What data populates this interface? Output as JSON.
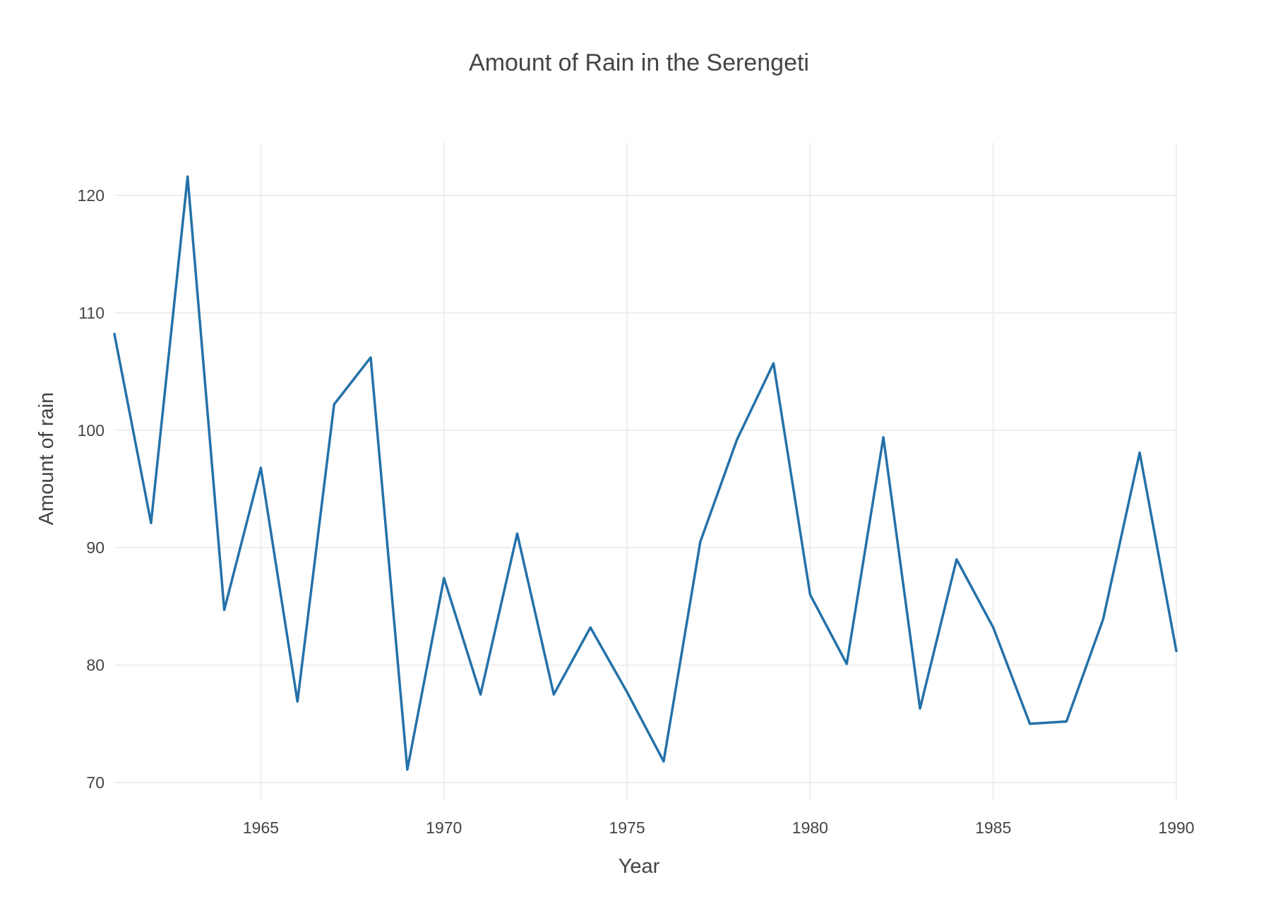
{
  "chart_data": {
    "type": "line",
    "title": "Amount of Rain in the Serengeti",
    "xlabel": "Year",
    "ylabel": "Amount of rain",
    "xlim": [
      1961,
      1990
    ],
    "ylim": [
      68.5,
      124.5
    ],
    "xticks": [
      1965,
      1970,
      1975,
      1980,
      1985,
      1990
    ],
    "yticks": [
      70,
      80,
      90,
      100,
      110,
      120
    ],
    "grid": true,
    "legend": "none",
    "line_color": "#2471a9",
    "series": [
      {
        "x": [
          1961,
          1962,
          1963,
          1964,
          1965,
          1966,
          1967,
          1968,
          1969,
          1970,
          1971,
          1972,
          1973,
          1974,
          1975,
          1976,
          1977,
          1978,
          1979,
          1980,
          1981,
          1982,
          1983,
          1984,
          1985,
          1986,
          1987,
          1988,
          1989,
          1990
        ],
        "values": [
          108.2,
          92.1,
          121.6,
          84.7,
          96.8,
          76.9,
          102.2,
          106.2,
          71.1,
          87.4,
          77.5,
          91.2,
          77.5,
          83.2,
          77.7,
          71.8,
          90.5,
          99.2,
          105.7,
          86.0,
          80.1,
          99.4,
          76.3,
          89.0,
          83.2,
          75.0,
          75.2,
          83.9,
          98.1,
          81.2
        ]
      }
    ]
  }
}
